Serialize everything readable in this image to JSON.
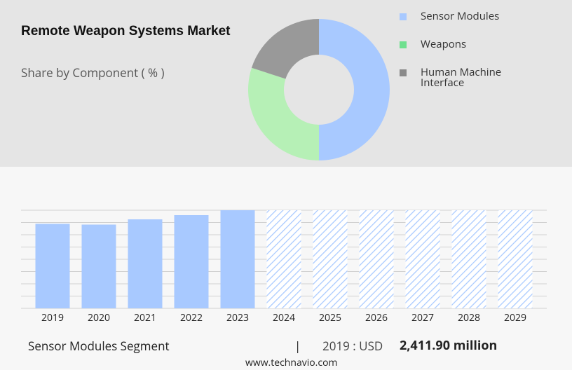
{
  "chart_data": [
    {
      "type": "donut",
      "title": "Remote Weapon Systems Market",
      "subtitle": "Share by Component ( % )",
      "categories": [
        "Sensor Modules",
        "Weapons",
        "Human Machine Interface"
      ],
      "values": [
        50,
        30,
        20
      ],
      "colors": [
        "#a8c9ff",
        "#b6f0b6",
        "#999999"
      ],
      "legend_colors": [
        "#a8c9ff",
        "#6fe08f",
        "#8a8a8a"
      ]
    },
    {
      "type": "bar",
      "categories": [
        "2019",
        "2020",
        "2021",
        "2022",
        "2023",
        "2024",
        "2025",
        "2026",
        "2027",
        "2028",
        "2029"
      ],
      "values": [
        2411.9,
        2390,
        2540,
        2660,
        2800,
        null,
        null,
        null,
        null,
        null,
        null
      ],
      "color": "#a8c9ff",
      "forecast_color": "#a8c9ff",
      "ylim": [
        0,
        2800
      ],
      "yticks": [
        0,
        350,
        700,
        1050,
        1400,
        1750,
        2100,
        2450,
        2800
      ],
      "grid": true
    }
  ],
  "footer": {
    "segment": "Sensor Modules Segment",
    "year_label": "2019 : USD",
    "value": "2,411.90 million",
    "source": "www.technavio.com"
  }
}
